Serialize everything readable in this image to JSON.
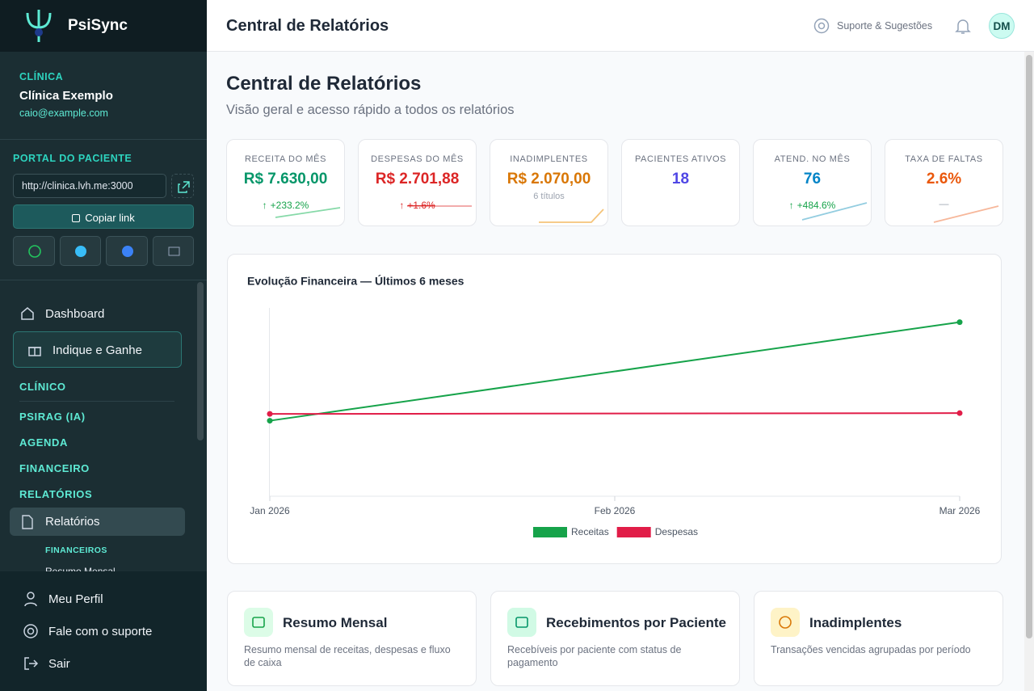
{
  "sidebar": {
    "brand": "PsiSync",
    "clinic_label": "CLÍNICA",
    "clinic_name": "Clínica Exemplo",
    "email": "caio@example.com",
    "portal_label": "PORTAL DO PACIENTE",
    "portal_url": "http://clinica.lvh.me:3000",
    "copy_button": "Copiar link",
    "nav": {
      "dashboard": "Dashboard",
      "referral": "Indique e Ganhe",
      "sections": [
        "CLÍNICO",
        "PSIRAG (IA)",
        "AGENDA",
        "FINANCEIRO",
        "RELATÓRIOS"
      ],
      "active": "Relatórios",
      "subsection": "FINANCEIROS",
      "subitem": "Resumo Mensal"
    },
    "footer": [
      "Meu Perfil",
      "Fale com o suporte",
      "Sair"
    ]
  },
  "header": {
    "title": "Central de Relatórios",
    "support": "Suporte & Sugestões",
    "avatar": "DM"
  },
  "page": {
    "title": "Central de Relatórios",
    "subtitle": "Visão geral e acesso rápido a todos os relatórios"
  },
  "kpis": [
    {
      "label": "RECEITA DO MÊS",
      "value": "R$ 7.630,00",
      "change": "+233.2%"
    },
    {
      "label": "DESPESAS DO MÊS",
      "value": "R$ 2.701,88",
      "change": "+1.6%"
    },
    {
      "label": "INADIMPLENTES",
      "value": "R$ 2.070,00",
      "note": "6 títulos"
    },
    {
      "label": "PACIENTES ATIVOS",
      "value": "18"
    },
    {
      "label": "ATEND. NO MÊS",
      "value": "76",
      "change": "+484.6%"
    },
    {
      "label": "TAXA DE FALTAS",
      "value": "2.6%",
      "note": "—"
    }
  ],
  "chart_data": {
    "type": "line",
    "title": "Evolução Financeira — Últimos 6 meses",
    "x": [
      "2026-01",
      "2026-03"
    ],
    "xlim": [
      "2026-01",
      "2026-03"
    ],
    "xticks": [
      {
        "value": "2026-01",
        "label": "Jan 2026"
      },
      {
        "value": "2026-02",
        "label": "Feb 2026"
      },
      {
        "value": "2026-03",
        "label": "Mar 2026"
      }
    ],
    "ylim": [
      -1800,
      8400
    ],
    "series": [
      {
        "name": "Receitas",
        "color": "#16a34a",
        "values": [
          2290,
          7630
        ]
      },
      {
        "name": "Despesas",
        "color": "#e11d48",
        "values": [
          2659,
          2701.88
        ]
      }
    ],
    "legend": "bottom"
  },
  "reports": [
    {
      "title": "Resumo Mensal",
      "description": "Resumo mensal de receitas, despesas e fluxo de caixa"
    },
    {
      "title": "Recebimentos por Paciente",
      "description": "Recebíveis por paciente com status de pagamento"
    },
    {
      "title": "Inadimplentes",
      "description": "Transações vencidas agrupadas por período"
    }
  ]
}
